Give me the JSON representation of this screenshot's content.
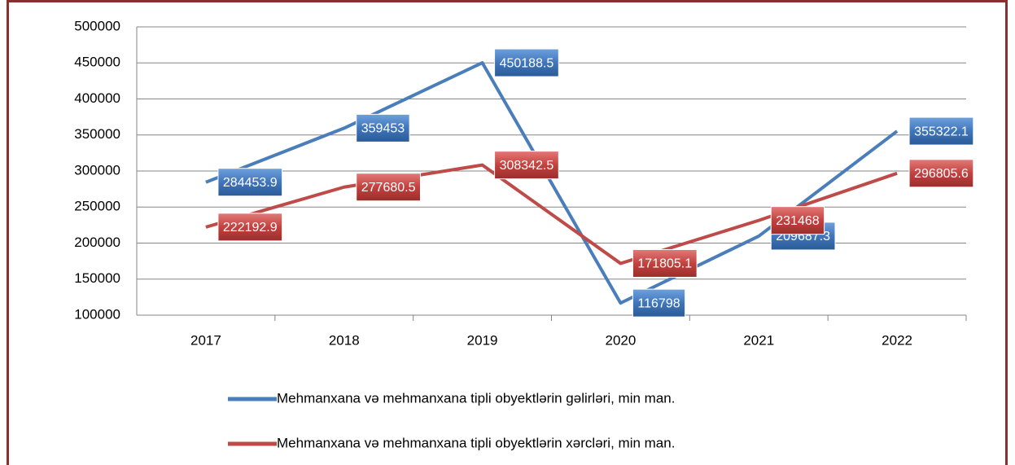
{
  "chart_data": {
    "type": "line",
    "categories": [
      "2017",
      "2018",
      "2019",
      "2020",
      "2021",
      "2022"
    ],
    "series": [
      {
        "name": "Mehmanxana və mehmanxana tipli obyektlərin gəlirləri, min man.",
        "color": "#4a7ebb",
        "values": [
          284453.9,
          359453,
          450188.5,
          116798,
          209687.3,
          355322.1
        ]
      },
      {
        "name": "Mehmanxana və mehmanxana tipli obyektlərin xərcləri, min man.",
        "color": "#be4b48",
        "values": [
          222192.9,
          277680.5,
          308342.5,
          171805.1,
          231468,
          296805.6
        ]
      }
    ],
    "ylim": [
      100000,
      500000
    ],
    "yticks": [
      100000,
      150000,
      200000,
      250000,
      300000,
      350000,
      400000,
      450000,
      500000
    ],
    "grid": true,
    "data_labels": true,
    "legend": "bottom"
  }
}
